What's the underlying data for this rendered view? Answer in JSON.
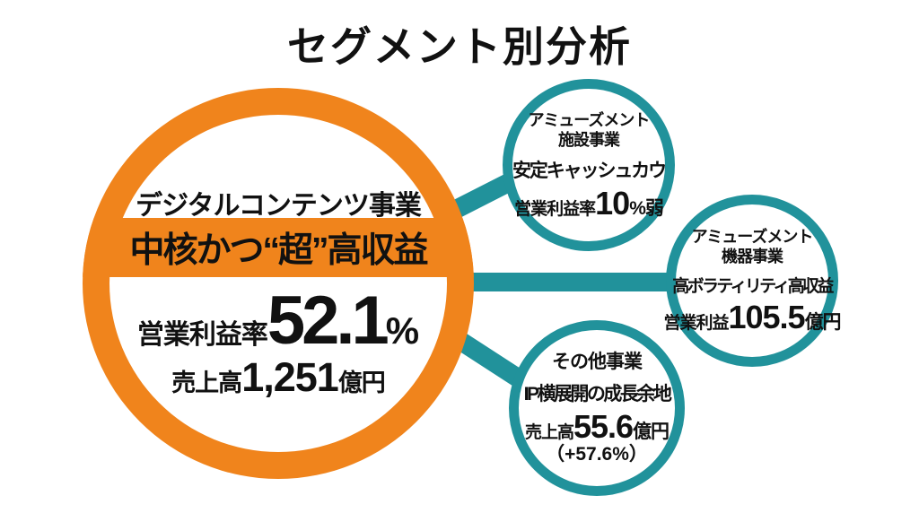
{
  "title": "セグメント別分析",
  "colors": {
    "orange": "#F0841C",
    "teal": "#21929B",
    "ink": "#111111",
    "background": "#FFFFFF"
  },
  "main_segment": {
    "name": "デジタルコンテンツ事業",
    "highlight": "中核かつ“超”高収益",
    "profit_margin_label": "営業利益率",
    "profit_margin_value": "52.1",
    "profit_margin_unit": "%",
    "revenue_label": "売上高",
    "revenue_value": "1,251",
    "revenue_unit": "億円"
  },
  "segments": [
    {
      "name_line1": "アミューズメント",
      "name_line2": "施設事業",
      "tagline": "安定キャッシュカウ",
      "metric_label": "営業利益率",
      "metric_value": "10",
      "metric_unit": "%弱"
    },
    {
      "name_line1": "アミューズメント",
      "name_line2": "機器事業",
      "tagline": "高ボラティリティ高収益",
      "metric_label": "営業利益",
      "metric_value": "105.5",
      "metric_unit": "億円"
    },
    {
      "name_line1": "その他事業",
      "tagline": "IP横展開の成長余地",
      "metric_label": "売上高",
      "metric_value": "55.6",
      "metric_unit": "億円",
      "metric_note": "（+57.6%）"
    }
  ]
}
